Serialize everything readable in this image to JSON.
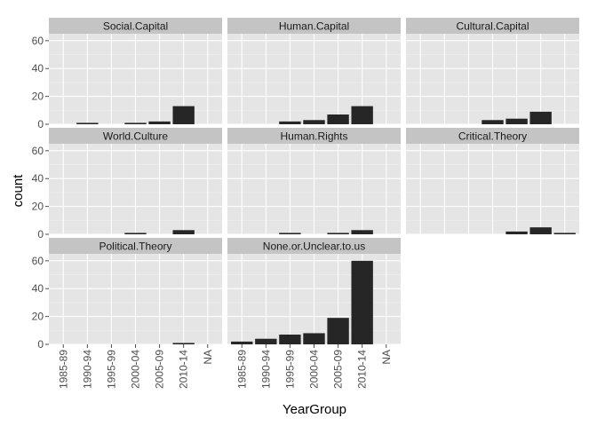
{
  "chart_data": {
    "type": "bar",
    "facet_layout": "facet_wrap, 3 columns",
    "xlabel": "YearGroup",
    "ylabel": "count",
    "categories": [
      "1985-89",
      "1990-94",
      "1995-99",
      "2000-04",
      "2005-09",
      "2010-14",
      "NA"
    ],
    "ylim": [
      0,
      65
    ],
    "yticks": [
      0,
      20,
      40,
      60
    ],
    "grid": true,
    "bar_color": "#262626",
    "panel_bg": "#e5e5e5",
    "strip_bg": "#c4c4c4",
    "facets": [
      {
        "name": "Social.Capital",
        "values": [
          0,
          1,
          0,
          1,
          2,
          13,
          0
        ]
      },
      {
        "name": "Human.Capital",
        "values": [
          0,
          0,
          2,
          3,
          7,
          13,
          0
        ]
      },
      {
        "name": "Cultural.Capital",
        "values": [
          0,
          0,
          0,
          3,
          4,
          9,
          0
        ]
      },
      {
        "name": "World.Culture",
        "values": [
          0,
          0,
          0,
          1,
          0,
          3,
          0
        ]
      },
      {
        "name": "Human.Rights",
        "values": [
          0,
          0,
          1,
          0,
          1,
          3,
          0
        ]
      },
      {
        "name": "Critical.Theory",
        "values": [
          0,
          0,
          0,
          0,
          2,
          5,
          1
        ]
      },
      {
        "name": "Political.Theory",
        "values": [
          0,
          0,
          0,
          0,
          0,
          1,
          0
        ]
      },
      {
        "name": "None.or.Unclear.to.us",
        "values": [
          2,
          4,
          7,
          8,
          19,
          60,
          0
        ]
      }
    ]
  }
}
